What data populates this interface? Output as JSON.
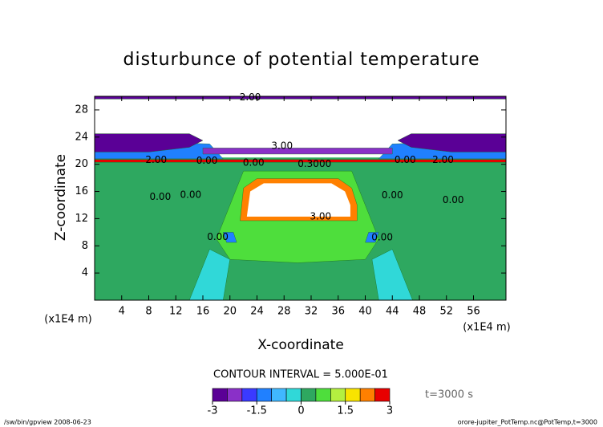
{
  "chart_data": {
    "type": "contour",
    "title": "disturbunce of potential temperature",
    "x_label": "X-coordinate",
    "y_label": "Z-coordinate",
    "x_unit": "(x1E4 m)",
    "y_unit": "(x1E4 m)",
    "xlim": [
      0,
      60.8
    ],
    "ylim": [
      0,
      30
    ],
    "xticks": [
      4,
      8,
      12,
      16,
      20,
      24,
      28,
      32,
      36,
      40,
      44,
      48,
      52,
      56
    ],
    "yticks": [
      4,
      8,
      12,
      16,
      20,
      24,
      28
    ],
    "contour_interval": "CONTOUR INTERVAL = 5.000E-01",
    "time_label": "t=3000 s",
    "footer_left": "/sw/bin/gpview  2008-06-23",
    "footer_right": "orore-jupiter_PotTemp.nc@PotTemp,t=3000",
    "colorbar": {
      "levels": [
        -3,
        -2.5,
        -2,
        -1.5,
        -1,
        -0.5,
        0,
        0.5,
        1,
        1.5,
        2,
        2.5,
        3
      ],
      "colors": [
        "#5a0096",
        "#8a30c8",
        "#3a3aff",
        "#2080ff",
        "#40b8ff",
        "#30d8d8",
        "#2ea860",
        "#4ede3c",
        "#b4f040",
        "#f8e400",
        "#ff8000",
        "#e80000"
      ],
      "ticks": [
        -3,
        -1.5,
        0,
        1.5,
        3
      ]
    },
    "regions": [
      {
        "level": 0.25,
        "x": [
          0,
          60.8,
          60.8,
          0
        ],
        "y": [
          0,
          0,
          30,
          30
        ]
      },
      {
        "level": 0.75,
        "x": [
          18,
          22,
          38,
          42,
          40,
          30,
          20
        ],
        "y": [
          9,
          19,
          19,
          9,
          6,
          5.5,
          6
        ]
      },
      {
        "level": -0.25,
        "x": [
          14,
          17,
          20,
          19,
          14
        ],
        "y": [
          0,
          7.5,
          6,
          0,
          0
        ]
      },
      {
        "level": -0.25,
        "x": [
          47,
          44,
          41,
          42,
          47
        ],
        "y": [
          0,
          7.5,
          6,
          0,
          0
        ]
      },
      {
        "level": -1.25,
        "x": [
          19.5,
          21,
          20.5,
          19
        ],
        "y": [
          8.5,
          8.5,
          10,
          10
        ]
      },
      {
        "level": -1.25,
        "x": [
          40,
          41.5,
          42,
          40.5
        ],
        "y": [
          8.5,
          8.5,
          10,
          10
        ]
      },
      {
        "level": null,
        "x": [
          0,
          60.8,
          60.8,
          0
        ],
        "y": [
          21,
          21,
          29.6,
          29.6
        ]
      },
      {
        "level": -2.75,
        "x": [
          0,
          60.8,
          60.8,
          0
        ],
        "y": [
          29.6,
          29.6,
          30,
          30
        ]
      },
      {
        "level": -1.25,
        "x": [
          0,
          19,
          17,
          0
        ],
        "y": [
          20.8,
          20.8,
          23,
          23.5
        ]
      },
      {
        "level": -1.25,
        "x": [
          60.8,
          42,
          44,
          60.8
        ],
        "y": [
          20.8,
          20.8,
          23,
          23.5
        ]
      },
      {
        "level": -2.25,
        "x": [
          16,
          44,
          44,
          16
        ],
        "y": [
          21.5,
          21.5,
          22.4,
          22.4
        ]
      },
      {
        "level": -2.75,
        "x": [
          0,
          8,
          14,
          16,
          14,
          8,
          0
        ],
        "y": [
          21.8,
          21.8,
          22.5,
          23.5,
          24.5,
          24.5,
          24.5
        ]
      },
      {
        "level": -2.75,
        "x": [
          60.8,
          52.8,
          46.8,
          44.8,
          46.8,
          52.8,
          60.8
        ],
        "y": [
          21.8,
          21.8,
          22.5,
          23.5,
          24.5,
          24.5,
          24.5
        ]
      },
      {
        "level": 2.75,
        "x": [
          0,
          60.8,
          60.8,
          0
        ],
        "y": [
          20.3,
          20.3,
          20.7,
          20.7
        ]
      },
      {
        "level": 2.25,
        "x": [
          21.5,
          22,
          24,
          36,
          38,
          38.8,
          38.8,
          21.5
        ],
        "y": [
          11.7,
          16.5,
          17.9,
          17.9,
          16.5,
          14,
          11.7,
          11.7
        ]
      },
      {
        "level": null,
        "x": [
          22.5,
          23,
          25,
          35,
          37,
          37.8,
          37.8,
          22.5
        ],
        "y": [
          12.3,
          16,
          17.2,
          17.2,
          16,
          14,
          12.3,
          12.3
        ]
      }
    ],
    "contour_labels": [
      {
        "text": "2.00",
        "x": 23,
        "y": 29.8
      },
      {
        "text": "3.00",
        "x": 27.7,
        "y": 22.7
      },
      {
        "text": "2.00",
        "x": 9.1,
        "y": 20.6
      },
      {
        "text": "0.00",
        "x": 16.6,
        "y": 20.5
      },
      {
        "text": "0.00",
        "x": 23.5,
        "y": 20.2
      },
      {
        "text": "0.3000",
        "x": 32.5,
        "y": 20
      },
      {
        "text": "0.00",
        "x": 45.9,
        "y": 20.6
      },
      {
        "text": "2.00",
        "x": 51.5,
        "y": 20.6
      },
      {
        "text": "0.00",
        "x": 9.7,
        "y": 15.2
      },
      {
        "text": "0.00",
        "x": 14.2,
        "y": 15.5
      },
      {
        "text": "0.00",
        "x": 44,
        "y": 15.4
      },
      {
        "text": "0.00",
        "x": 53,
        "y": 14.7
      },
      {
        "text": "3.00",
        "x": 33.4,
        "y": 12.3
      },
      {
        "text": "0.00",
        "x": 18.2,
        "y": 9.3
      },
      {
        "text": "0.00",
        "x": 42.5,
        "y": 9.2
      }
    ]
  }
}
